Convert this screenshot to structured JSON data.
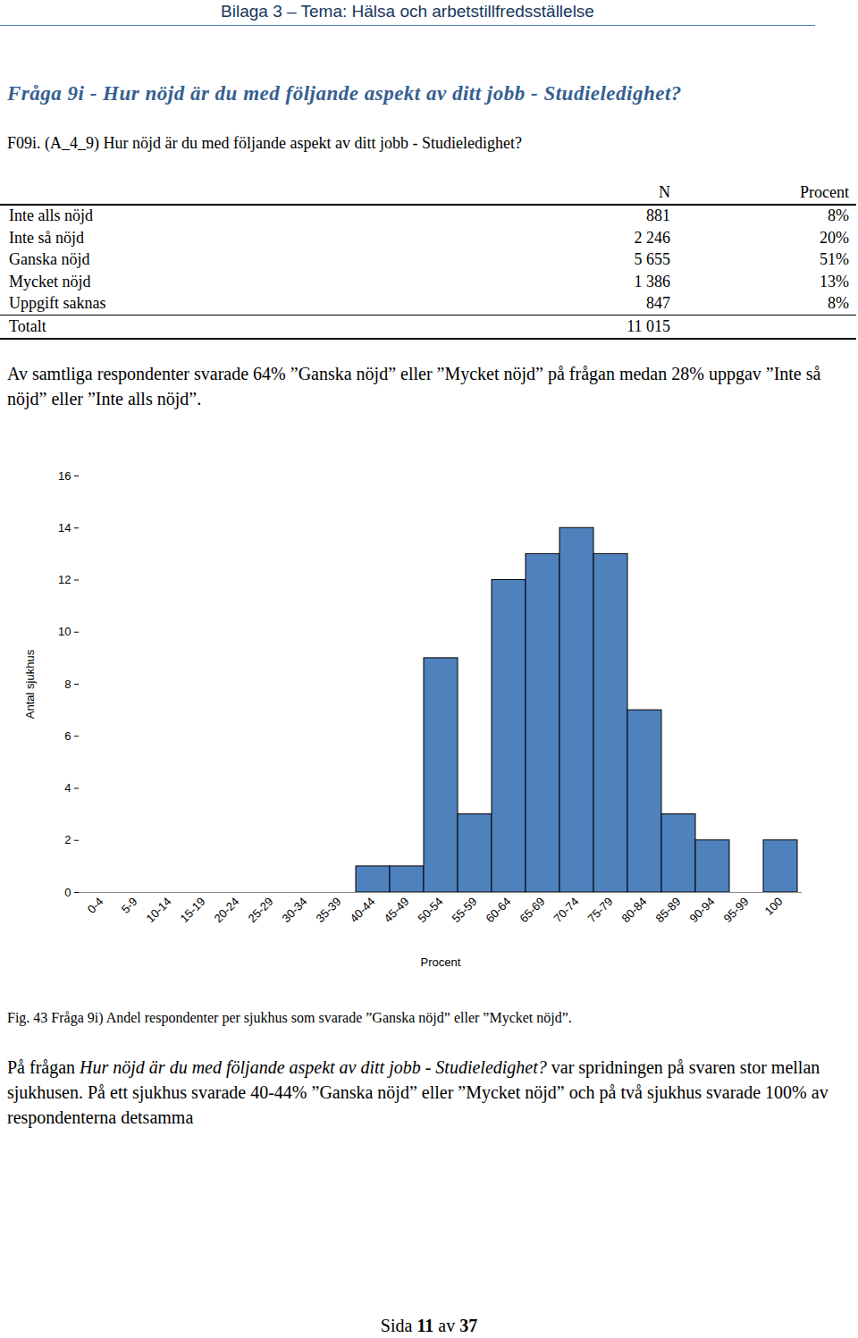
{
  "header": "Bilaga 3 – Tema: Hälsa och arbetstillfredsställelse",
  "heading": "Fråga 9i - Hur nöjd är du med följande aspekt av ditt jobb - Studieledighet?",
  "question": "F09i. (A_4_9) Hur nöjd är du med följande aspekt av ditt jobb - Studieledighet?",
  "table": {
    "columns": [
      "N",
      "Procent"
    ],
    "rows": [
      [
        "Inte alls nöjd",
        "881",
        "8%"
      ],
      [
        "Inte så nöjd",
        "2 246",
        "20%"
      ],
      [
        "Ganska nöjd",
        "5 655",
        "51%"
      ],
      [
        "Mycket nöjd",
        "1 386",
        "13%"
      ],
      [
        "Uppgift saknas",
        "847",
        "8%"
      ],
      [
        "Totalt",
        "11 015"
      ]
    ]
  },
  "summary": "Av samtliga respondenter svarade 64% ”Ganska nöjd” eller ”Mycket nöjd” på frågan medan 28% uppgav ”Inte så nöjd” eller ”Inte alls nöjd”.",
  "chart_data": {
    "type": "bar",
    "x_label": "Procent",
    "y_label": "Antal sjukhus",
    "categories": [
      "0-4",
      "5-9",
      "10-14",
      "15-19",
      "20-24",
      "25-29",
      "30-34",
      "35-39",
      "40-44",
      "45-49",
      "50-54",
      "55-59",
      "60-64",
      "65-69",
      "70-74",
      "75-79",
      "80-84",
      "85-89",
      "90-94",
      "95-99",
      "100"
    ],
    "values": [
      0,
      0,
      0,
      0,
      0,
      0,
      0,
      0,
      1,
      1,
      9,
      3,
      12,
      13,
      14,
      13,
      7,
      3,
      2,
      0,
      2
    ],
    "color": "#4f81bd",
    "ylim": [
      0,
      16
    ],
    "yticks": [
      0,
      2,
      4,
      6,
      8,
      10,
      12,
      14,
      16
    ],
    "grid": false
  },
  "caption": "Fig. 43 Fråga 9i) Andel respondenter per sjukhus som svarade ”Ganska nöjd” eller ”Mycket nöjd”.",
  "conclusion": {
    "before": "På frågan ",
    "italic": "Hur nöjd är du med följande aspekt av ditt jobb - Studieledighet?",
    "after": " var spridningen på svaren stor mellan sjukhusen. På ett sjukhus svarade 40-44% ”Ganska nöjd” eller ”Mycket nöjd” och på två sjukhus svarade 100% av respondenterna detsamma"
  },
  "footer": [
    "Sida",
    "11",
    "av",
    "37"
  ]
}
